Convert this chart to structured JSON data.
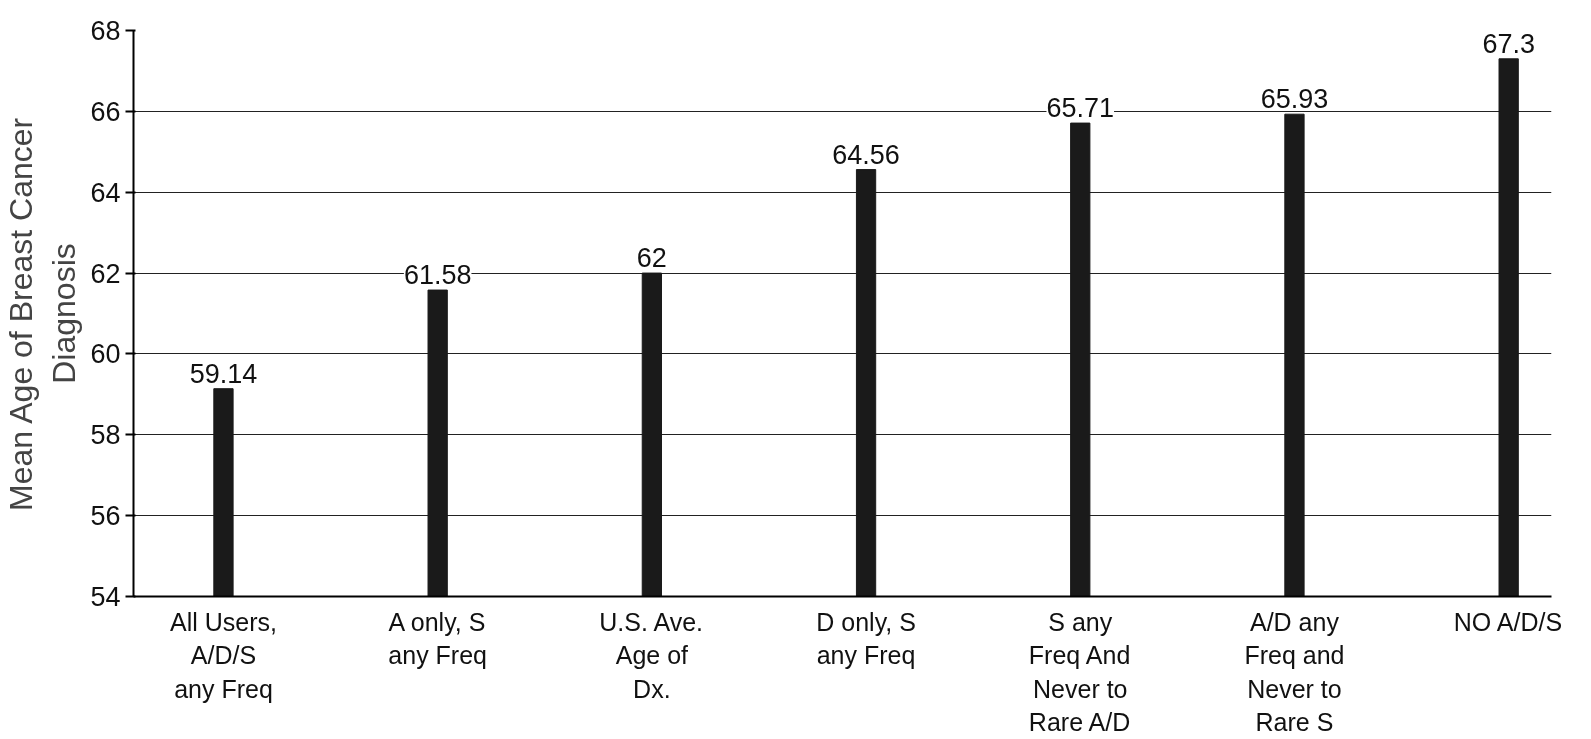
{
  "chart_data": {
    "type": "bar",
    "ylabel": "Mean Age of Breast Cancer\nDiagnosis",
    "categories": [
      "All Users,\nA/D/S\nany Freq",
      "A only, S\nany Freq",
      "U.S. Ave.\nAge of\nDx.",
      "D only, S\nany Freq",
      "S any\nFreq And\nNever to\nRare A/D",
      "A/D any\nFreq and\nNever to\nRare S",
      "NO A/D/S"
    ],
    "values": [
      59.14,
      61.58,
      62,
      64.56,
      65.71,
      65.93,
      67.3
    ],
    "color": "#1a1a1a",
    "ylim": [
      54,
      68
    ],
    "yticks": [
      54,
      56,
      58,
      60,
      62,
      64,
      66,
      68
    ],
    "grid": "y",
    "data_labels": true
  }
}
